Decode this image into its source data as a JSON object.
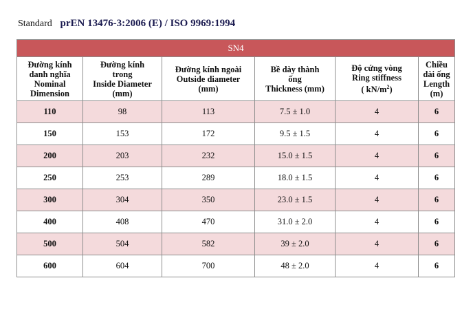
{
  "standard": {
    "label": "Standard",
    "value": "prEN 13476-3:2006 (E) / ISO 9969:1994"
  },
  "table": {
    "title": "SN4",
    "headers": [
      [
        "Đường kính",
        "danh nghĩa",
        "Nominal",
        "Dimension"
      ],
      [
        "Đường kính",
        "trong",
        "Inside Diameter",
        "(mm)"
      ],
      [
        "Đường kính ngoài",
        "Outside diameter",
        "(mm)"
      ],
      [
        "Bề dày thành",
        "ống",
        "Thickness (mm)"
      ],
      [
        "Độ cứng vòng",
        "Ring stiffness",
        "( kN/m"
      ],
      [
        "Chiều",
        "dài ống",
        "Length",
        "(m)"
      ]
    ],
    "ring_unit_sup": "2",
    "ring_unit_close": ")",
    "rows": [
      {
        "dn": "110",
        "inside": "98",
        "outside": "113",
        "thickness": "7.5 ± 1.0",
        "stiffness": "4",
        "length": "6"
      },
      {
        "dn": "150",
        "inside": "153",
        "outside": "172",
        "thickness": "9.5 ± 1.5",
        "stiffness": "4",
        "length": "6"
      },
      {
        "dn": "200",
        "inside": "203",
        "outside": "232",
        "thickness": "15.0 ± 1.5",
        "stiffness": "4",
        "length": "6"
      },
      {
        "dn": "250",
        "inside": "253",
        "outside": "289",
        "thickness": "18.0 ± 1.5",
        "stiffness": "4",
        "length": "6"
      },
      {
        "dn": "300",
        "inside": "304",
        "outside": "350",
        "thickness": "23.0 ± 1.5",
        "stiffness": "4",
        "length": "6"
      },
      {
        "dn": "400",
        "inside": "408",
        "outside": "470",
        "thickness": "31.0 ± 2.0",
        "stiffness": "4",
        "length": "6"
      },
      {
        "dn": "500",
        "inside": "504",
        "outside": "582",
        "thickness": "39 ± 2.0",
        "stiffness": "4",
        "length": "6"
      },
      {
        "dn": "600",
        "inside": "604",
        "outside": "700",
        "thickness": "48 ± 2.0",
        "stiffness": "4",
        "length": "6"
      }
    ]
  }
}
